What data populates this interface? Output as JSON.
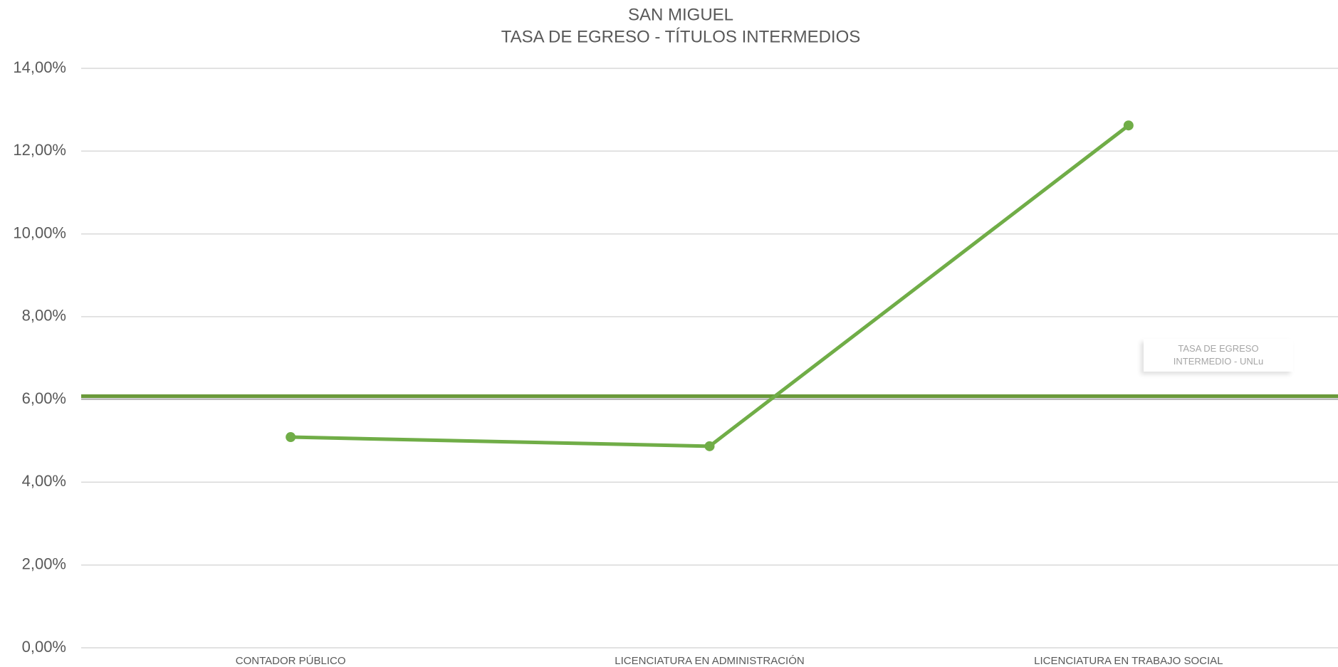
{
  "chart_data": {
    "type": "line",
    "title": "SAN MIGUEL",
    "subtitle": "TASA DE EGRESO - TÍTULOS INTERMEDIOS",
    "categories": [
      "CONTADOR PÚBLICO",
      "LICENCIATURA EN ADMINISTRACIÓN",
      "LICENCIATURA EN TRABAJO SOCIAL"
    ],
    "series": [
      {
        "color": "#70ad47",
        "values": [
          5.09,
          4.87,
          12.62
        ]
      }
    ],
    "reference_line": {
      "value": 6.08,
      "label": "TASA DE EGRESO INTERMEDIO - UNLu",
      "color": "#6a9a3a"
    },
    "ylim": [
      0,
      14
    ],
    "yticks": [
      {
        "value": 0,
        "label": "0,00%"
      },
      {
        "value": 2,
        "label": "2,00%"
      },
      {
        "value": 4,
        "label": "4,00%"
      },
      {
        "value": 6,
        "label": "6,00%"
      },
      {
        "value": 8,
        "label": "8,00%"
      },
      {
        "value": 10,
        "label": "10,00%"
      },
      {
        "value": 12,
        "label": "12,00%"
      },
      {
        "value": 14,
        "label": "14,00%"
      }
    ],
    "grid": true
  }
}
